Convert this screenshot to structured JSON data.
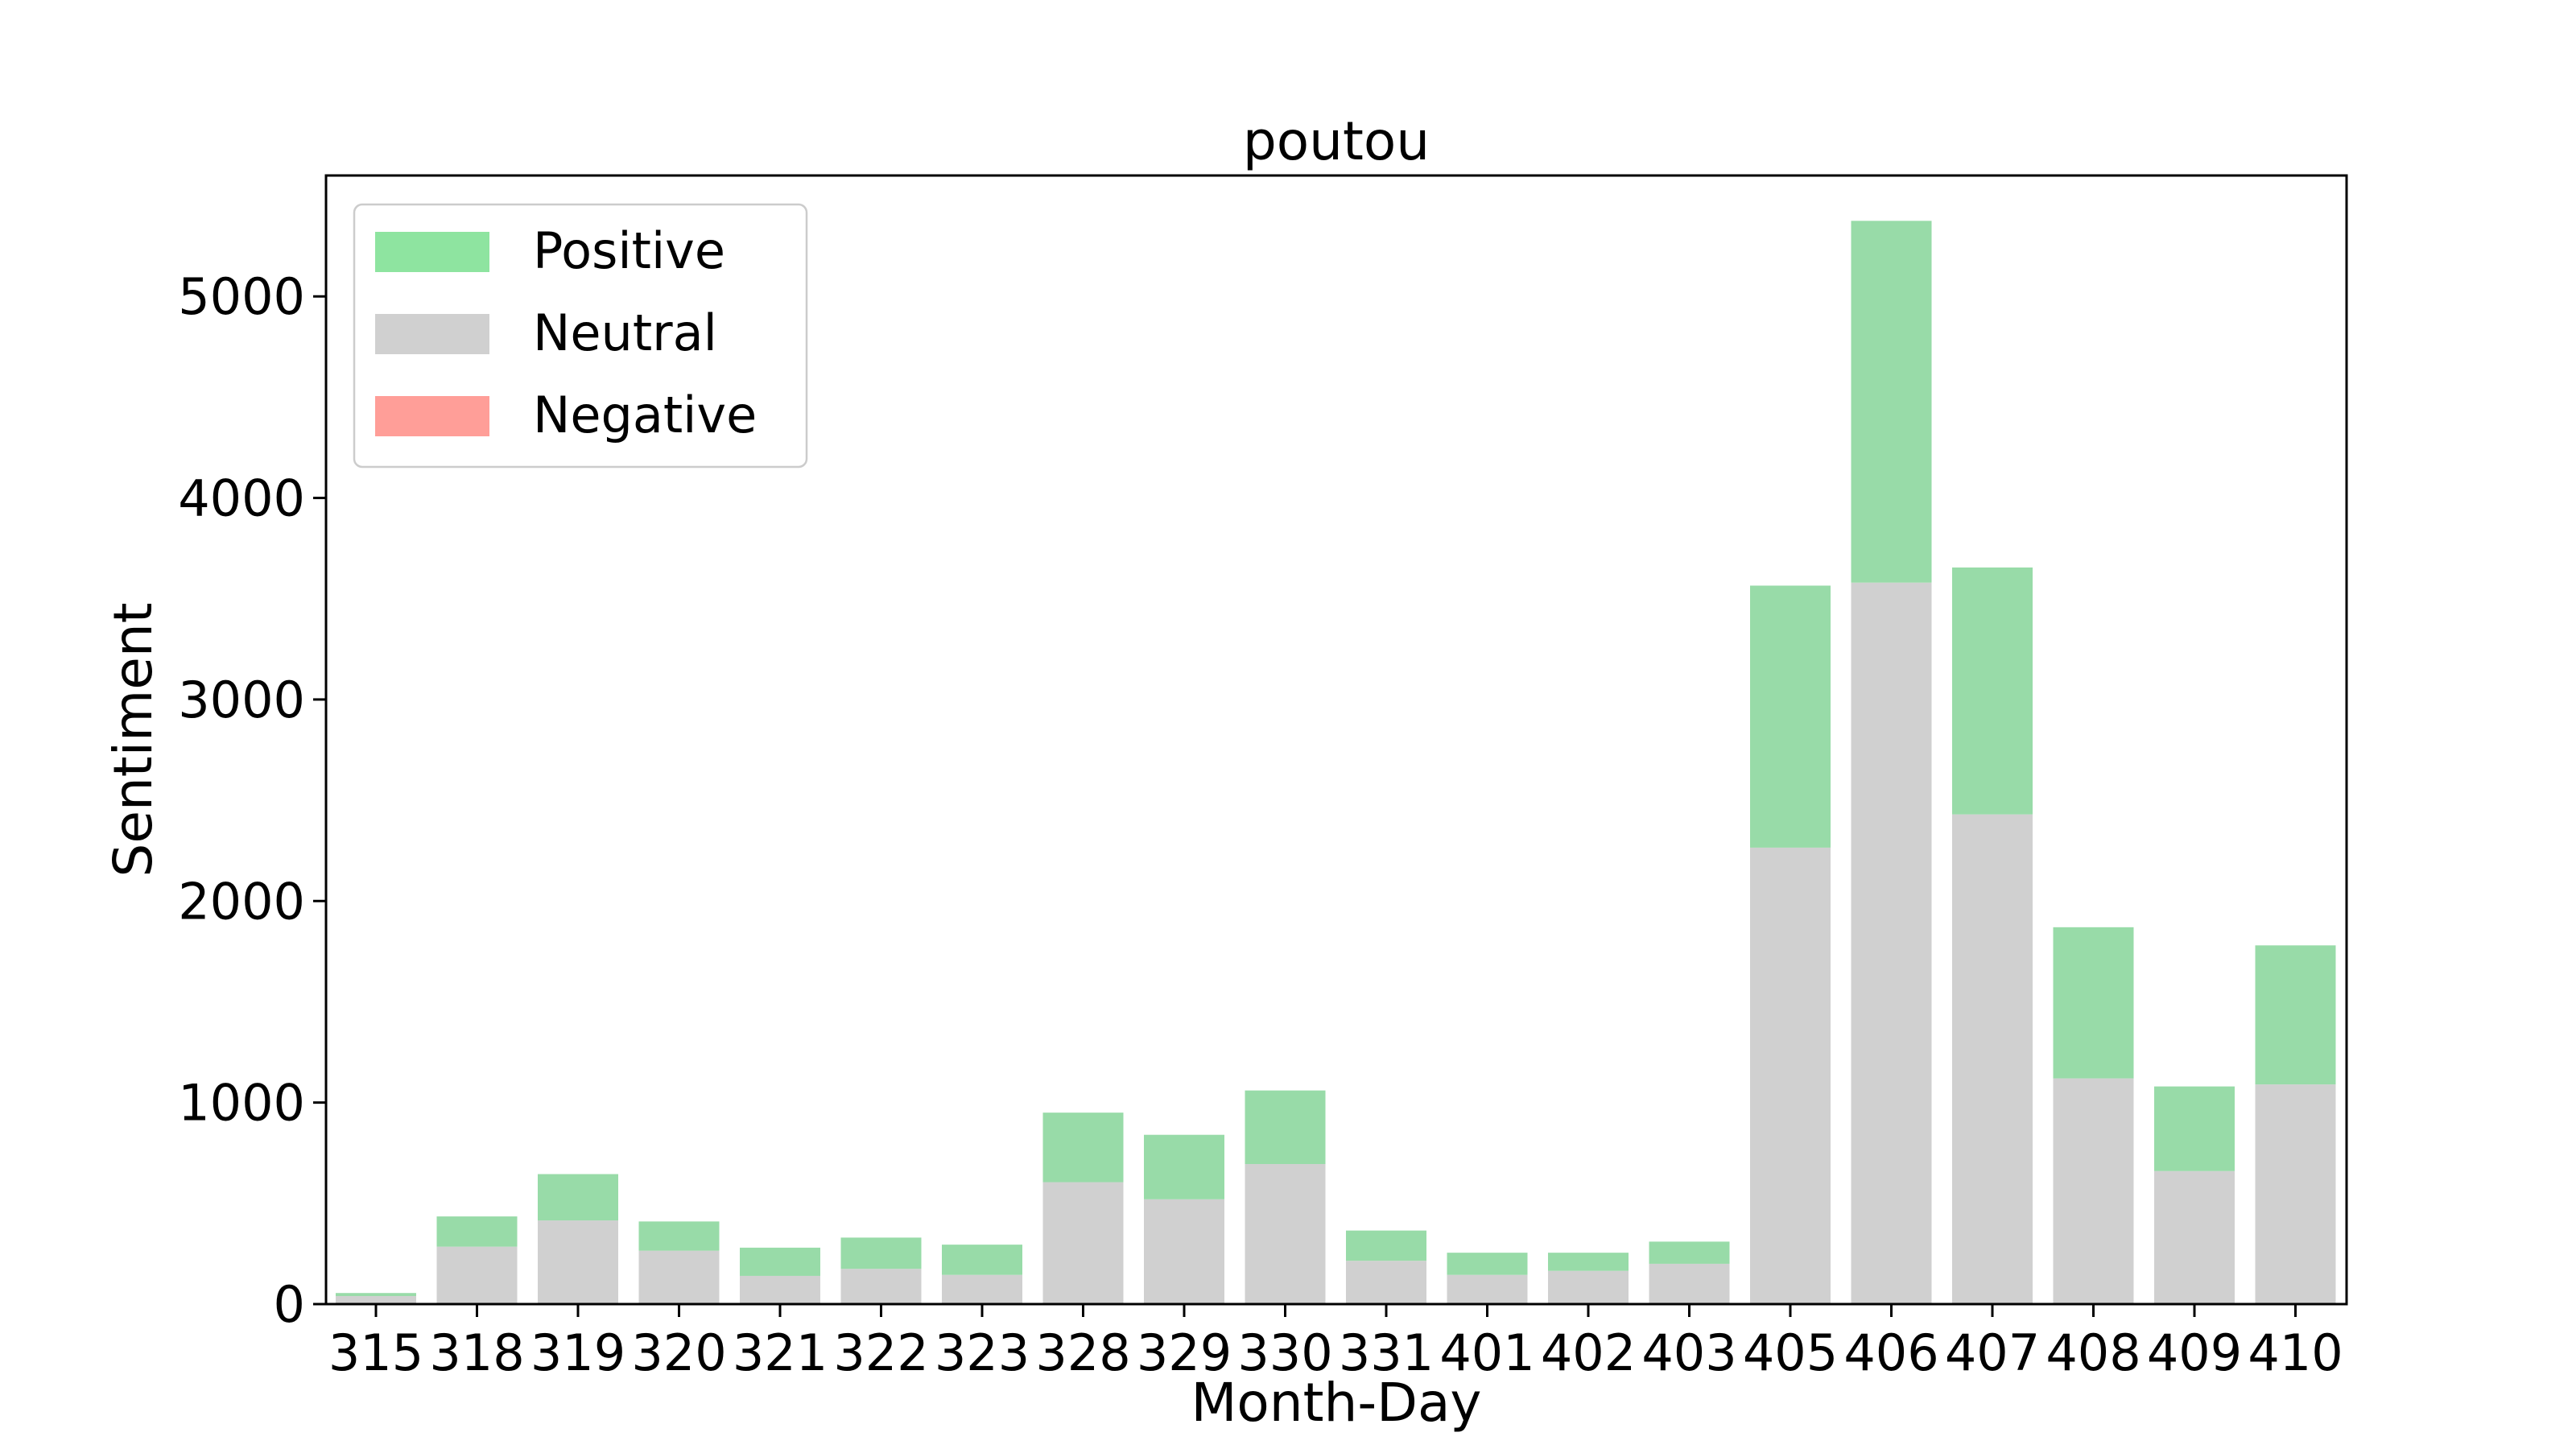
{
  "chart_data": {
    "type": "bar",
    "stacked": true,
    "title": "poutou",
    "xlabel": "Month-Day",
    "ylabel": "Sentiment",
    "ylim": [
      0,
      5600
    ],
    "yticks": [
      0,
      1000,
      2000,
      3000,
      4000,
      5000
    ],
    "grid": false,
    "legend_position": "top-left",
    "categories": [
      "315",
      "318",
      "319",
      "320",
      "321",
      "322",
      "323",
      "328",
      "329",
      "330",
      "331",
      "401",
      "402",
      "403",
      "405",
      "406",
      "407",
      "408",
      "409",
      "410"
    ],
    "series": [
      {
        "name": "Negative",
        "color": "#ff9e98",
        "values": [
          0,
          0,
          0,
          0,
          0,
          0,
          0,
          0,
          0,
          0,
          0,
          0,
          0,
          0,
          0,
          0,
          0,
          0,
          0,
          0
        ]
      },
      {
        "name": "Neutral",
        "color": "#d0d0d0",
        "values": [
          40,
          285,
          415,
          265,
          140,
          175,
          145,
          605,
          520,
          695,
          215,
          145,
          165,
          200,
          2265,
          3580,
          2430,
          1120,
          660,
          1090
        ]
      },
      {
        "name": "Positive",
        "color": "#98dba8",
        "values": [
          15,
          150,
          230,
          145,
          140,
          155,
          150,
          345,
          320,
          365,
          150,
          110,
          90,
          110,
          1300,
          1795,
          1225,
          750,
          420,
          690
        ]
      }
    ],
    "legend": [
      {
        "label": "Positive",
        "color": "#8ee4a0"
      },
      {
        "label": "Neutral",
        "color": "#d0d0d0"
      },
      {
        "label": "Negative",
        "color": "#ff9e98"
      }
    ]
  }
}
